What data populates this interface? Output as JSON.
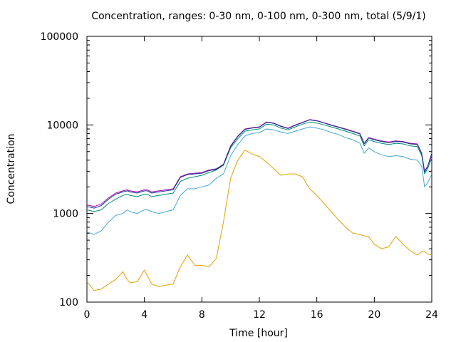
{
  "chart_data": {
    "type": "line",
    "title": "Concentration, ranges: 0-30 nm, 0-100 nm, 0-300 nm, total (5/9/1)",
    "xlabel": "Time [hour]",
    "ylabel": "Concentration",
    "xlim": [
      0,
      24
    ],
    "ylim": [
      100,
      100000
    ],
    "yscale": "log",
    "grid": false,
    "legend": "none",
    "x_ticks": [
      0,
      4,
      8,
      12,
      16,
      20,
      24
    ],
    "x_tick_labels": [
      "0",
      "4",
      "8",
      "12",
      "16",
      "20",
      "24"
    ],
    "y_ticks": [
      100,
      1000,
      10000,
      100000
    ],
    "y_tick_labels": [
      "100",
      "1000",
      "10000",
      "100000"
    ],
    "colors": {
      "range_0_30": "#e5a000",
      "range_0_100": "#3fa7d6",
      "range_0_300": "#008b7a",
      "total": "#a000b0",
      "total_dark": "#1a3a8a"
    },
    "x": [
      0,
      0.5,
      1,
      1.5,
      2,
      2.5,
      2.8,
      3,
      3.5,
      4,
      4.2,
      4.5,
      5,
      5.5,
      6,
      6.5,
      7,
      7.5,
      8,
      8.5,
      9,
      9.5,
      10,
      10.5,
      11,
      11.5,
      12,
      12.5,
      13,
      13.5,
      14,
      14.5,
      15,
      15.5,
      16,
      16.5,
      17,
      17.5,
      18,
      18.5,
      19,
      19.3,
      19.6,
      20,
      20.5,
      21,
      21.5,
      22,
      22.5,
      23,
      23.3,
      23.5,
      23.7,
      24
    ],
    "series": [
      {
        "color_key": "range_0_30",
        "values": [
          170,
          135,
          140,
          160,
          180,
          220,
          180,
          165,
          170,
          230,
          200,
          160,
          150,
          155,
          160,
          250,
          340,
          260,
          260,
          250,
          310,
          800,
          2500,
          4000,
          5200,
          4700,
          4400,
          3800,
          3200,
          2700,
          2800,
          2800,
          2600,
          1900,
          1600,
          1300,
          1050,
          850,
          700,
          600,
          580,
          560,
          550,
          450,
          400,
          420,
          550,
          450,
          380,
          340,
          370,
          370,
          350,
          340
        ]
      },
      {
        "color_key": "range_0_100",
        "values": [
          620,
          580,
          640,
          800,
          950,
          1000,
          1100,
          1050,
          1000,
          1100,
          1100,
          1050,
          1000,
          1050,
          1100,
          1600,
          1900,
          1900,
          2000,
          2100,
          2500,
          2800,
          4500,
          6000,
          7500,
          8000,
          8200,
          9000,
          8800,
          8300,
          8000,
          8500,
          9000,
          9500,
          9200,
          8800,
          8200,
          7800,
          7200,
          6800,
          6200,
          4800,
          5500,
          5000,
          4600,
          4400,
          4500,
          4400,
          4100,
          4000,
          3400,
          2000,
          2200,
          2800
        ]
      },
      {
        "color_key": "range_0_300",
        "values": [
          1100,
          1050,
          1100,
          1300,
          1450,
          1600,
          1650,
          1600,
          1550,
          1650,
          1650,
          1550,
          1600,
          1650,
          1700,
          2300,
          2500,
          2600,
          2700,
          2900,
          3100,
          3500,
          5500,
          7000,
          8500,
          8800,
          9000,
          10200,
          10000,
          9200,
          8800,
          9500,
          10200,
          10800,
          10500,
          10000,
          9500,
          9000,
          8500,
          8000,
          7500,
          5800,
          6800,
          6500,
          6200,
          6000,
          6200,
          6100,
          5800,
          5700,
          4500,
          2800,
          3200,
          4200
        ]
      },
      {
        "color_key": "total",
        "values": [
          1250,
          1200,
          1280,
          1500,
          1700,
          1800,
          1850,
          1800,
          1750,
          1850,
          1850,
          1750,
          1800,
          1850,
          1900,
          2600,
          2800,
          2850,
          2900,
          3100,
          3200,
          3600,
          5800,
          7500,
          9000,
          9300,
          9500,
          10800,
          10500,
          9700,
          9200,
          10000,
          10700,
          11500,
          11200,
          10600,
          10000,
          9500,
          9000,
          8500,
          8000,
          6200,
          7200,
          6900,
          6600,
          6400,
          6600,
          6500,
          6200,
          6100,
          4800,
          3000,
          3400,
          4500
        ]
      },
      {
        "color_key": "total_dark",
        "values": [
          1200,
          1150,
          1230,
          1450,
          1650,
          1750,
          1800,
          1750,
          1700,
          1800,
          1800,
          1700,
          1750,
          1800,
          1850,
          2550,
          2750,
          2800,
          2850,
          3050,
          3150,
          3550,
          5700,
          7400,
          8900,
          9200,
          9400,
          10700,
          10400,
          9600,
          9100,
          9900,
          10600,
          11400,
          11100,
          10500,
          9900,
          9400,
          8900,
          8400,
          7900,
          6100,
          7100,
          6800,
          6500,
          6300,
          6500,
          6400,
          6100,
          6000,
          4700,
          2950,
          3350,
          4800
        ]
      }
    ]
  }
}
